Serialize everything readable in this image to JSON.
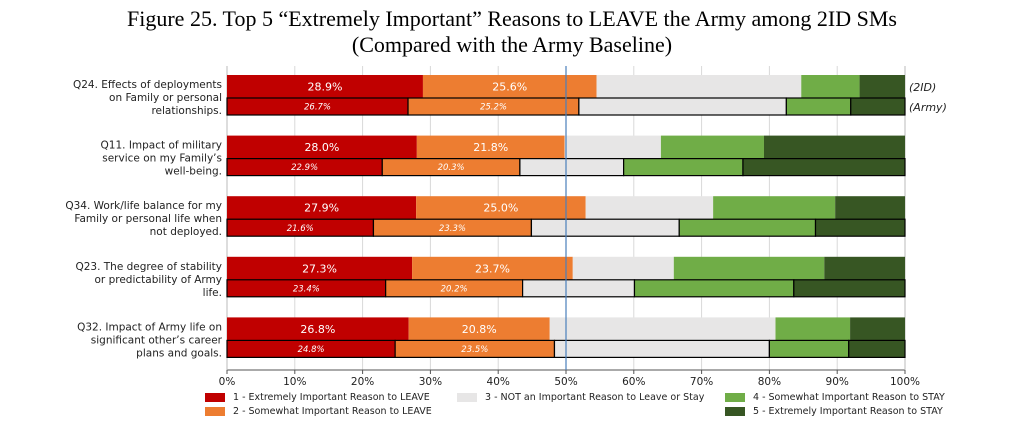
{
  "title": "Figure 25. Top 5 “Extremely Important” Reasons to LEAVE the Army among 2ID SMs",
  "subtitle": "(Compared with the Army Baseline)",
  "chart_data": {
    "type": "bar",
    "orientation": "horizontal",
    "stacked": true,
    "xlim": [
      0,
      100
    ],
    "x_ticks": [
      "0%",
      "10%",
      "20%",
      "30%",
      "40%",
      "50%",
      "60%",
      "70%",
      "80%",
      "90%",
      "100%"
    ],
    "reference_line": 50,
    "grid": true,
    "legend_position": "bottom",
    "group_labels": [
      "(2ID)",
      "(Army)"
    ],
    "categories": [
      [
        "Q24. Effects of deployments",
        "on Family or personal",
        "relationships."
      ],
      [
        "Q11. Impact of military",
        "service on my Family’s",
        "well-being."
      ],
      [
        "Q34. Work/life balance for my",
        "Family or personal life when",
        "not deployed."
      ],
      [
        "Q23. The degree of stability",
        "or predictability of Army",
        "life."
      ],
      [
        "Q32. Impact of Army life on",
        "significant other’s career",
        "plans and goals."
      ]
    ],
    "series": [
      {
        "name": "1 - Extremely Important Reason to LEAVE",
        "color": "#c00000",
        "values_2ID": [
          28.9,
          28.0,
          27.9,
          27.3,
          26.8
        ],
        "values_Army": [
          26.7,
          22.9,
          21.6,
          23.4,
          24.8
        ],
        "labels_2ID": [
          "28.9%",
          "28.0%",
          "27.9%",
          "27.3%",
          "26.8%"
        ],
        "labels_Army": [
          "26.7%",
          "22.9%",
          "21.6%",
          "23.4%",
          "24.8%"
        ]
      },
      {
        "name": "2 - Somewhat Important Reason to LEAVE",
        "color": "#ed7d31",
        "values_2ID": [
          25.6,
          21.8,
          25.0,
          23.7,
          20.8
        ],
        "values_Army": [
          25.2,
          20.3,
          23.3,
          20.2,
          23.5
        ],
        "labels_2ID": [
          "25.6%",
          "21.8%",
          "25.0%",
          "23.7%",
          "20.8%"
        ],
        "labels_Army": [
          "25.2%",
          "20.3%",
          "23.3%",
          "20.2%",
          "23.5%"
        ]
      },
      {
        "name": "3 - NOT an Important Reason to Leave or Stay",
        "color": "#e7e6e6",
        "values_2ID": [
          30.2,
          14.2,
          18.8,
          14.9,
          33.3
        ],
        "values_Army": [
          30.6,
          15.3,
          21.8,
          16.5,
          31.7
        ]
      },
      {
        "name": "4 - Somewhat Important Reason to STAY",
        "color": "#70ad47",
        "values_2ID": [
          8.6,
          15.2,
          18.0,
          22.2,
          11.0
        ],
        "values_Army": [
          9.5,
          17.6,
          20.1,
          23.5,
          11.7
        ]
      },
      {
        "name": "5 - Extremely Important Reason to STAY",
        "color": "#375623",
        "values_2ID": [
          6.7,
          20.8,
          10.3,
          11.9,
          8.1
        ],
        "values_Army": [
          8.0,
          23.9,
          13.2,
          16.4,
          8.3
        ]
      }
    ]
  }
}
